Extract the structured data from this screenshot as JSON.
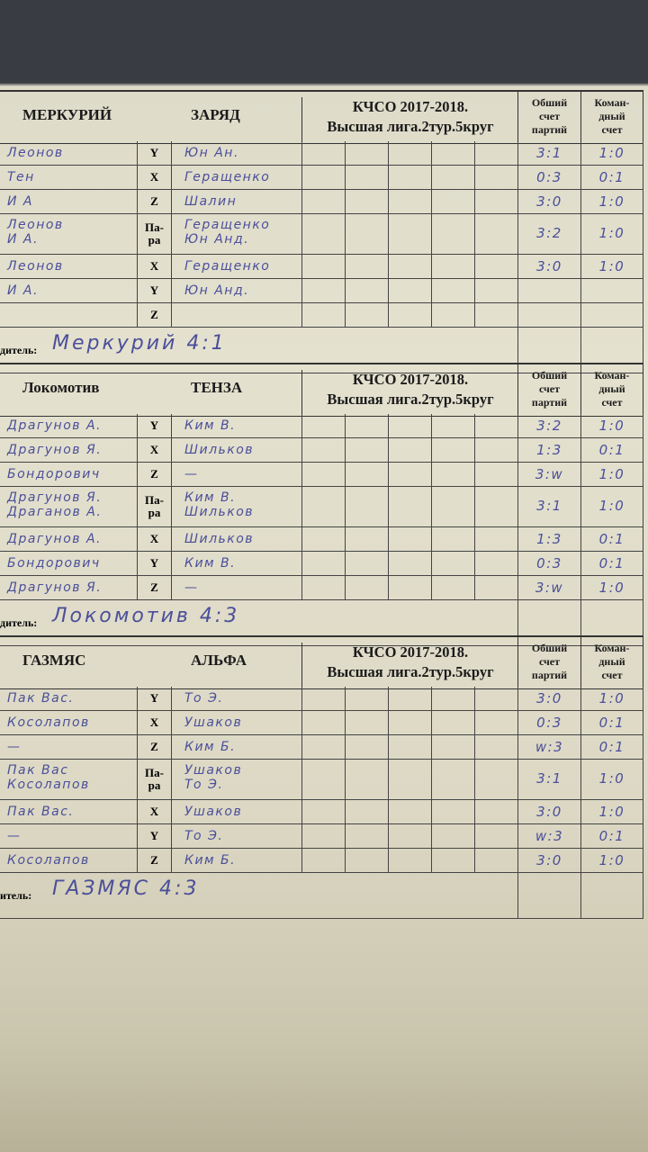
{
  "header_columns": {
    "total_sets": "Обший\nсчет\nпартий",
    "team_score": "Коман-\nдный\nсчет"
  },
  "matches": [
    {
      "home": "МЕРКУРИЙ",
      "away": "ЗАРЯД",
      "title_line1": "КЧСО 2017-2018.",
      "title_line2": "Высшая лига.2тур.5круг",
      "winner_label": "дитель:",
      "winner": "Меркурий 4:1",
      "rows": [
        {
          "home": "Леонов",
          "type": "Y",
          "away": "Юн Ан.",
          "sets": "3:1",
          "team": "1:0"
        },
        {
          "home": "Тен",
          "type": "X",
          "away": "Геращенко",
          "sets": "0:3",
          "team": "0:1"
        },
        {
          "home": "И А",
          "type": "Z",
          "away": "Шалин",
          "sets": "3:0",
          "team": "1:0"
        },
        {
          "home": "Леонов\nИ А.",
          "type": "Па-\nра",
          "away": "Геращенко\nЮн Анд.",
          "sets": "3:2",
          "team": "1:0"
        },
        {
          "home": "Леонов",
          "type": "X",
          "away": "Геращенко",
          "sets": "3:0",
          "team": "1:0"
        },
        {
          "home": "И А.",
          "type": "Y",
          "away": "Юн Анд.",
          "sets": "",
          "team": ""
        },
        {
          "home": "",
          "type": "Z",
          "away": "",
          "sets": "",
          "team": ""
        }
      ]
    },
    {
      "home": "Локомотив",
      "away": "ТЕНЗА",
      "title_line1": "КЧСО 2017-2018.",
      "title_line2": "Высшая лига.2тур.5круг",
      "winner_label": "дитель:",
      "winner": "Локомотив 4:3",
      "rows": [
        {
          "home": "Драгунов А.",
          "type": "Y",
          "away": "Ким В.",
          "sets": "3:2",
          "team": "1:0"
        },
        {
          "home": "Драгунов Я.",
          "type": "X",
          "away": "Шильков",
          "sets": "1:3",
          "team": "0:1"
        },
        {
          "home": "Бондорович",
          "type": "Z",
          "away": "—",
          "sets": "3:w",
          "team": "1:0"
        },
        {
          "home": "Драгунов Я.\nДраганов А.",
          "type": "Па-\nра",
          "away": "Ким В.\nШильков",
          "sets": "3:1",
          "team": "1:0"
        },
        {
          "home": "Драгунов А.",
          "type": "X",
          "away": "Шильков",
          "sets": "1:3",
          "team": "0:1"
        },
        {
          "home": "Бондорович",
          "type": "Y",
          "away": "Ким В.",
          "sets": "0:3",
          "team": "0:1"
        },
        {
          "home": "Драгунов Я.",
          "type": "Z",
          "away": "—",
          "sets": "3:w",
          "team": "1:0"
        }
      ]
    },
    {
      "home": "ГАЗМЯС",
      "away": "АЛЬФА",
      "title_line1": "КЧСО 2017-2018.",
      "title_line2": "Высшая лига.2тур.5круг",
      "winner_label": "итель:",
      "winner": "ГАЗМЯС 4:3",
      "rows": [
        {
          "home": "Пак Вас.",
          "type": "Y",
          "away": "То Э.",
          "sets": "3:0",
          "team": "1:0"
        },
        {
          "home": "Косолапов",
          "type": "X",
          "away": "Ушаков",
          "sets": "0:3",
          "team": "0:1"
        },
        {
          "home": "—",
          "type": "Z",
          "away": "Ким Б.",
          "sets": "w:3",
          "team": "0:1"
        },
        {
          "home": "Пак Вас\nКосолапов",
          "type": "Па-\nра",
          "away": "Ушаков\nТо Э.",
          "sets": "3:1",
          "team": "1:0"
        },
        {
          "home": "Пак Вас.",
          "type": "X",
          "away": "Ушаков",
          "sets": "3:0",
          "team": "1:0"
        },
        {
          "home": "—",
          "type": "Y",
          "away": "То Э.",
          "sets": "w:3",
          "team": "0:1"
        },
        {
          "home": "Косолапов",
          "type": "Z",
          "away": "Ким Б.",
          "sets": "3:0",
          "team": "1:0"
        }
      ]
    }
  ]
}
